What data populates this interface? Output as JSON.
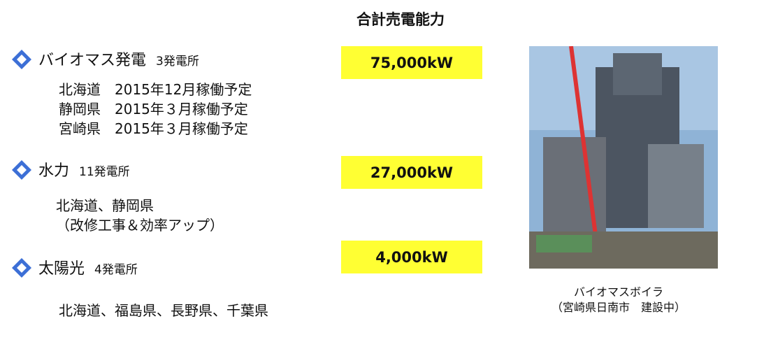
{
  "header": {
    "title": "合計売電能力"
  },
  "sections": [
    {
      "title": "バイオマス発電",
      "count": "3発電所",
      "details": [
        "北海道　2015年12月稼働予定",
        "静岡県　2015年３月稼働予定",
        "宮崎県　2015年３月稼働予定"
      ],
      "capacity": "75,000kW"
    },
    {
      "title": "水力",
      "count": "11発電所",
      "details": [
        "北海道、静岡県",
        "（改修工事＆効率アップ）"
      ],
      "capacity": "27,000kW"
    },
    {
      "title": "太陽光",
      "count": "4発電所",
      "details": [
        "北海道、福島県、長野県、千葉県"
      ],
      "capacity": "4,000kW"
    }
  ],
  "photo": {
    "caption": [
      "バイオマスボイラ",
      "（宮崎県日南市　建設中）"
    ]
  }
}
